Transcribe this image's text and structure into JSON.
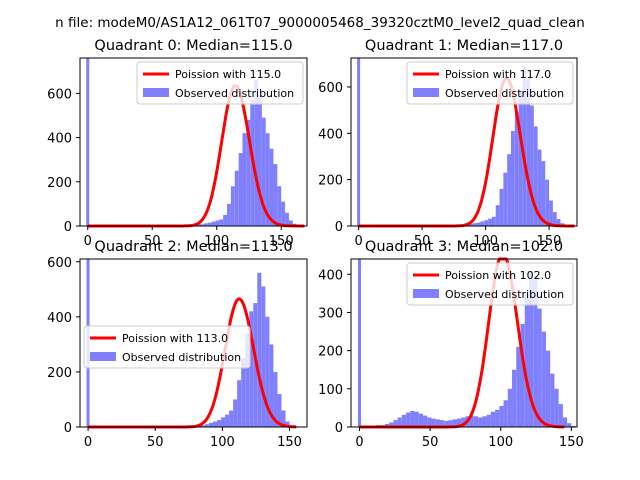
{
  "suptitle": "n file: modeM0/AS1A12_061T07_9000005468_39320cztM0_level2_quad_clean",
  "colors": {
    "fit": "#ff0000",
    "hist": "#8080ff",
    "axis": "#000000"
  },
  "chart_data": [
    {
      "type": "bar",
      "title": "Quadrant 0: Median=115.0",
      "median": 115.0,
      "xlim": [
        -6,
        170
      ],
      "ylim": [
        0,
        760
      ],
      "xticks": [
        0,
        50,
        100,
        150
      ],
      "yticks": [
        0,
        200,
        400,
        600
      ],
      "legend_placement": "upper right",
      "legend": [
        "Poission with 115.0",
        "Observed distribution"
      ],
      "zero_bin": 760,
      "hist_start": 60,
      "hist_values": [
        0,
        0,
        0,
        0,
        2,
        2,
        4,
        6,
        8,
        8,
        12,
        15,
        20,
        25,
        30,
        50,
        100,
        180,
        250,
        330,
        420,
        480,
        570,
        660,
        590,
        490,
        420,
        350,
        280,
        180,
        110,
        60,
        25,
        10,
        5,
        0,
        0
      ],
      "fit_range": [
        0,
        168
      ]
    },
    {
      "type": "bar",
      "title": "Quadrant 1: Median=117.0",
      "median": 117.0,
      "xlim": [
        -6,
        172
      ],
      "ylim": [
        0,
        725
      ],
      "xticks": [
        0,
        50,
        100,
        150
      ],
      "yticks": [
        0,
        200,
        400,
        600
      ],
      "legend_placement": "upper right",
      "legend": [
        "Poission with 117.0",
        "Observed distribution"
      ],
      "zero_bin": 725,
      "hist_start": 60,
      "hist_values": [
        0,
        0,
        0,
        0,
        2,
        3,
        5,
        8,
        8,
        10,
        12,
        15,
        20,
        25,
        32,
        40,
        90,
        160,
        230,
        310,
        410,
        490,
        580,
        690,
        640,
        520,
        430,
        330,
        280,
        200,
        110,
        60,
        30,
        12,
        5,
        0,
        0
      ],
      "fit_range": [
        0,
        170
      ]
    },
    {
      "type": "bar",
      "title": "Quadrant 2: Median=113.0",
      "median": 113.0,
      "xlim": [
        -6,
        163
      ],
      "ylim": [
        0,
        610
      ],
      "xticks": [
        0,
        50,
        100,
        150
      ],
      "yticks": [
        0,
        200,
        400,
        600
      ],
      "legend_placement": "center left",
      "legend": [
        "Poission with 113.0",
        "Observed distribution"
      ],
      "zero_bin": 610,
      "hist_start": 60,
      "hist_values": [
        0,
        0,
        0,
        0,
        2,
        3,
        4,
        5,
        6,
        10,
        15,
        20,
        25,
        35,
        45,
        60,
        100,
        170,
        250,
        340,
        420,
        450,
        560,
        510,
        400,
        300,
        200,
        120,
        60,
        20,
        5,
        0
      ],
      "fit_range": [
        0,
        155
      ]
    },
    {
      "type": "bar",
      "title": "Quadrant 3: Median=102.0",
      "median": 102.0,
      "xlim": [
        -6,
        154
      ],
      "ylim": [
        0,
        440
      ],
      "xticks": [
        0,
        50,
        100,
        150
      ],
      "yticks": [
        0,
        100,
        200,
        300,
        400
      ],
      "legend_placement": "upper right",
      "legend": [
        "Poission with 102.0",
        "Observed distribution"
      ],
      "zero_bin": 440,
      "hist_start": 0,
      "hist_values": [
        0,
        2,
        3,
        4,
        5,
        5,
        8,
        12,
        18,
        25,
        32,
        38,
        42,
        40,
        35,
        30,
        25,
        22,
        20,
        18,
        16,
        18,
        20,
        22,
        25,
        28,
        30,
        28,
        25,
        28,
        32,
        40,
        45,
        55,
        70,
        100,
        150,
        210,
        270,
        350,
        410,
        395,
        310,
        250,
        200,
        140,
        100,
        60,
        25,
        10,
        3,
        0
      ],
      "fit_range": [
        0,
        145
      ]
    }
  ]
}
